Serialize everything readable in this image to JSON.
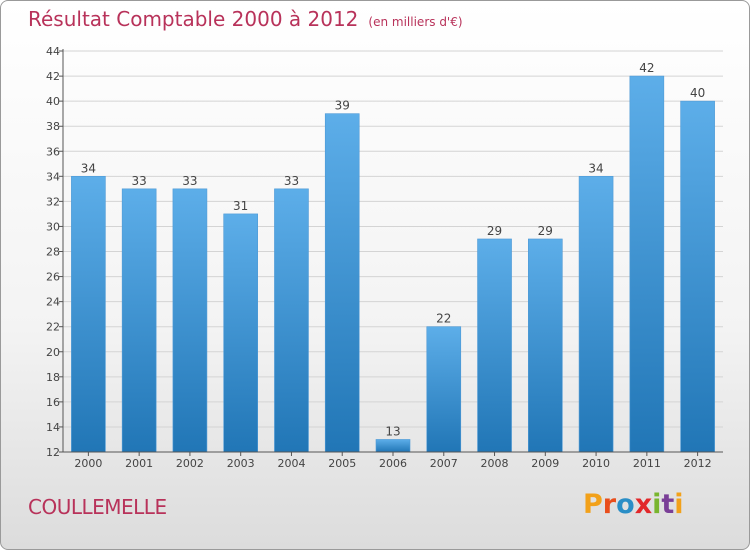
{
  "title": "Résultat Comptable 2000 à 2012",
  "subtitle": "(en milliers d'€)",
  "commune": "COULLEMELLE",
  "logo": {
    "letters": [
      "P",
      "r",
      "o",
      "x",
      "i",
      "t",
      "i"
    ],
    "colors": [
      "#f2a11a",
      "#e94e1b",
      "#2a8ec6",
      "#e2282a",
      "#79b52e",
      "#7a3f97",
      "#f2a11a"
    ]
  },
  "colors": {
    "title": "#b8325a",
    "bar_top": "#5daee9",
    "bar_bottom": "#2176b6",
    "grid": "#d4d4d4"
  },
  "chart_data": {
    "type": "bar",
    "categories": [
      "2000",
      "2001",
      "2002",
      "2003",
      "2004",
      "2005",
      "2006",
      "2007",
      "2008",
      "2009",
      "2010",
      "2011",
      "2012"
    ],
    "values": [
      34,
      33,
      33,
      31,
      33,
      39,
      13,
      22,
      29,
      29,
      34,
      42,
      40
    ],
    "ylim": [
      12,
      44
    ],
    "yticks": [
      12,
      14,
      16,
      18,
      20,
      22,
      24,
      26,
      28,
      30,
      32,
      34,
      36,
      38,
      40,
      42,
      44
    ],
    "grid": true,
    "title": "Résultat Comptable 2000 à 2012",
    "xlabel": "",
    "ylabel": ""
  }
}
